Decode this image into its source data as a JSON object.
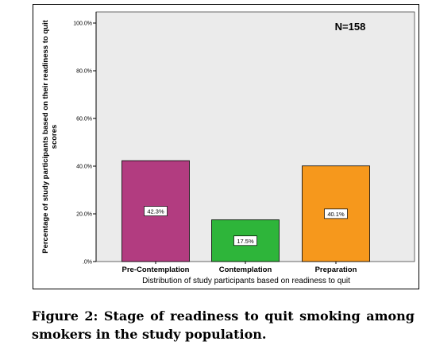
{
  "chart_data": {
    "type": "bar",
    "categories": [
      "Pre-Contemplation",
      "Contemplation",
      "Preparation"
    ],
    "values": [
      42.3,
      17.5,
      40.1
    ],
    "value_labels": [
      "42.3%",
      "17.5%",
      "40.1%"
    ],
    "bar_colors": [
      "#B23C80",
      "#2EB53A",
      "#F6981C"
    ],
    "xlabel": "Distribution of study participants based on readiness to quit",
    "ylabel": "Percentage of study participants based on their readiness to quit scores",
    "ylim": [
      0,
      100
    ],
    "yticks": [
      0,
      20,
      40,
      60,
      80,
      100
    ],
    "ytick_labels": [
      ".0%",
      "20.0%",
      "40.0%",
      "60.0%",
      "80.0%",
      "100.0%"
    ],
    "annotation": "N=158",
    "plot_background": "#EBEBEB",
    "grid": false
  },
  "figure_caption": "Figure 2: Stage of readiness to quit smoking among smokers in the study population."
}
